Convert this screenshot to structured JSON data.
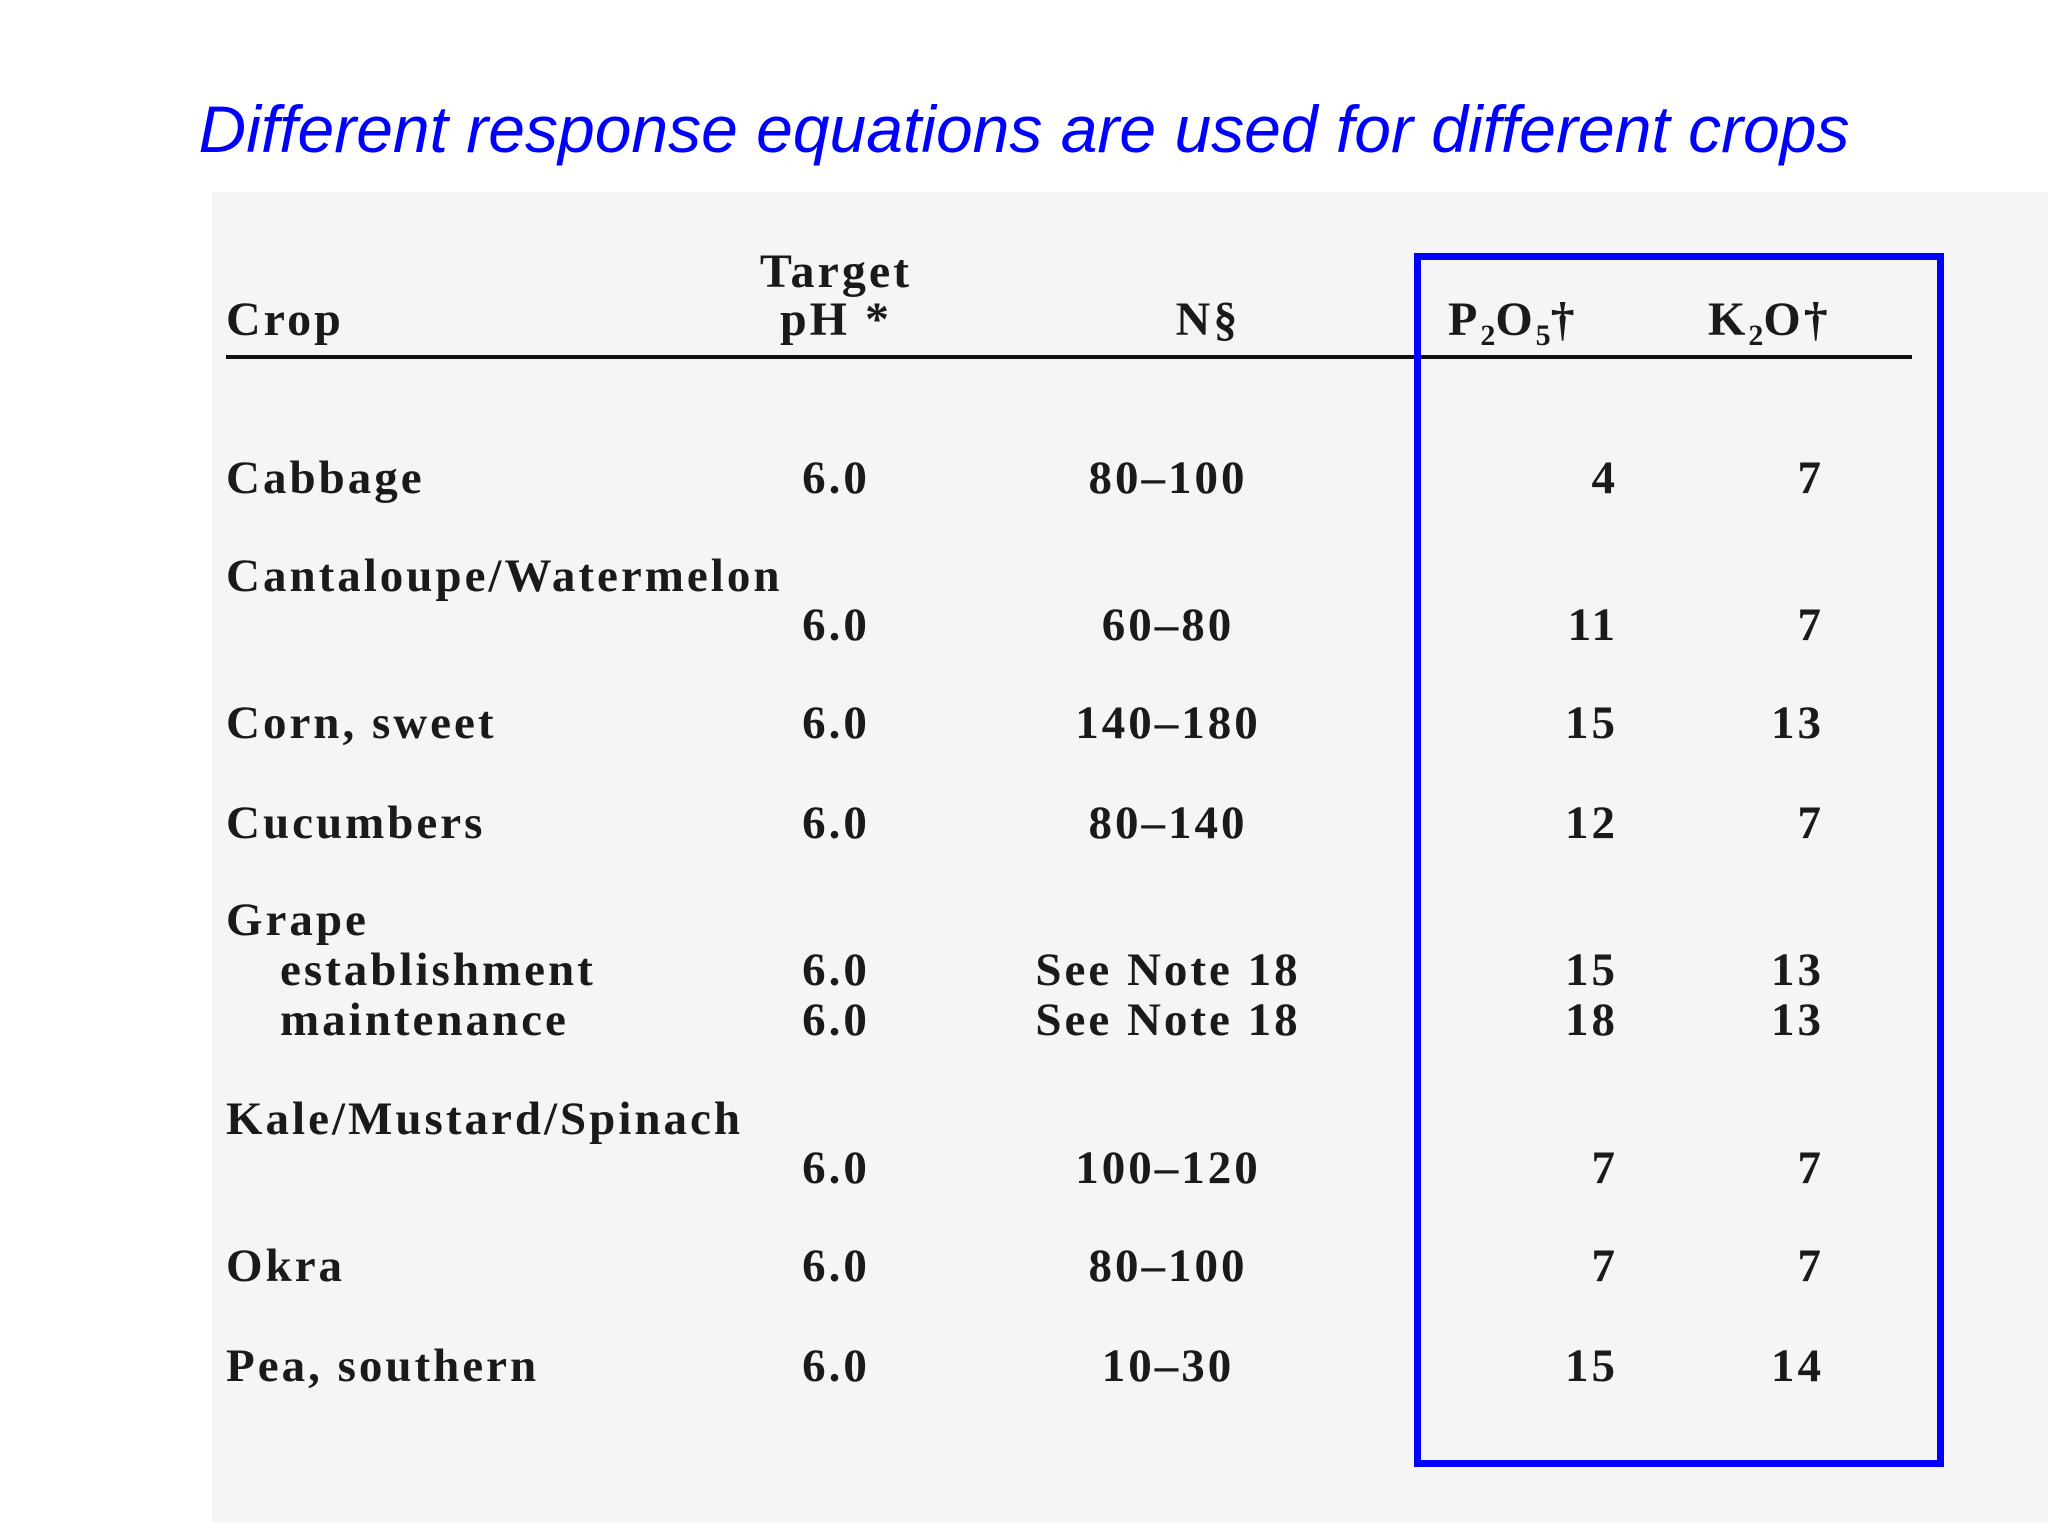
{
  "title": "Different response equations are used for different crops",
  "accent_color": "#0000ff",
  "table": {
    "headers": {
      "crop": "Crop",
      "target_ph_line1": "Target",
      "target_ph_line2": "pH *",
      "n": "N§",
      "p_main1": "P",
      "p_sub1": "2",
      "p_main2": "O",
      "p_sub2": "5",
      "p_mark": "†",
      "k_main1": "K",
      "k_sub1": "2",
      "k_main2": "O",
      "k_mark": "†"
    },
    "rows": [
      {
        "crop": "Cabbage",
        "ph": "6.0",
        "n": "80–100",
        "p2o5": "4",
        "k2o": "7"
      },
      {
        "crop": "Cantaloupe/Watermelon",
        "ph": "6.0",
        "n": "60–80",
        "p2o5": "11",
        "k2o": "7"
      },
      {
        "crop": "Corn, sweet",
        "ph": "6.0",
        "n": "140–180",
        "p2o5": "15",
        "k2o": "13"
      },
      {
        "crop": "Cucumbers",
        "ph": "6.0",
        "n": "80–140",
        "p2o5": "12",
        "k2o": "7"
      },
      {
        "crop": "Grape",
        "ph": "",
        "n": "",
        "p2o5": "",
        "k2o": ""
      },
      {
        "crop": "establishment",
        "ph": "6.0",
        "n": "See Note 18",
        "p2o5": "15",
        "k2o": "13"
      },
      {
        "crop": "maintenance",
        "ph": "6.0",
        "n": "See Note 18",
        "p2o5": "18",
        "k2o": "13"
      },
      {
        "crop": "Kale/Mustard/Spinach",
        "ph": "6.0",
        "n": "100–120",
        "p2o5": "7",
        "k2o": "7"
      },
      {
        "crop": "Okra",
        "ph": "6.0",
        "n": "80–100",
        "p2o5": "7",
        "k2o": "7"
      },
      {
        "crop": "Pea, southern",
        "ph": "6.0",
        "n": "10–30",
        "p2o5": "15",
        "k2o": "14"
      }
    ]
  }
}
